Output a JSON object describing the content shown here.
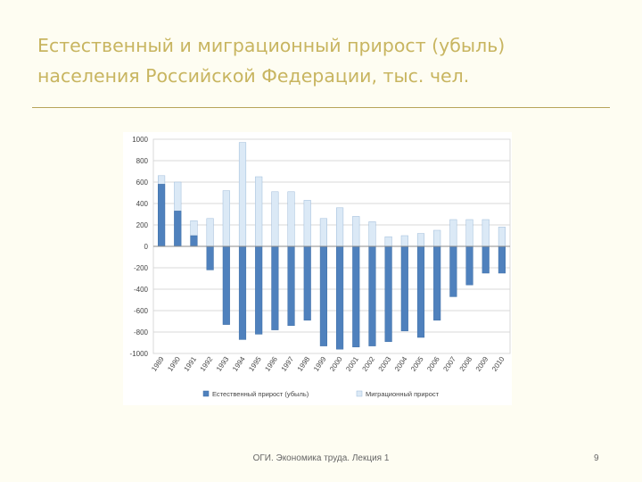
{
  "slide": {
    "title_line1": "Естественный и  миграционный прирост (убыль)",
    "title_line2": "населения Российской Федерации, тыс. чел.",
    "footer": "ОГИ. Экономика труда. Лекция 1",
    "page_number": "9"
  },
  "chart_data": {
    "type": "bar",
    "categories": [
      "1989",
      "1990",
      "1991",
      "1992",
      "1993",
      "1994",
      "1995",
      "1996",
      "1997",
      "1998",
      "1999",
      "2000",
      "2001",
      "2002",
      "2003",
      "2004",
      "2005",
      "2006",
      "2007",
      "2008",
      "2009",
      "2010"
    ],
    "series": [
      {
        "name": "Естественный прирост (убыль)",
        "color": "#4f81bd",
        "values": [
          580,
          330,
          100,
          -220,
          -730,
          -870,
          -820,
          -780,
          -740,
          -690,
          -930,
          -960,
          -940,
          -930,
          -890,
          -790,
          -850,
          -690,
          -470,
          -360,
          -250,
          -250
        ]
      },
      {
        "name": "Миграционный прирост",
        "color": "#dbe9f6",
        "values": [
          660,
          600,
          240,
          260,
          520,
          970,
          650,
          510,
          510,
          430,
          260,
          360,
          280,
          230,
          90,
          100,
          120,
          150,
          250,
          250,
          250,
          180
        ]
      }
    ],
    "ylim": [
      -1000,
      1000
    ],
    "yticks": [
      1000,
      800,
      600,
      400,
      200,
      0,
      -200,
      -400,
      -600,
      -800,
      -1000
    ],
    "grid": true,
    "legend_position": "bottom"
  }
}
